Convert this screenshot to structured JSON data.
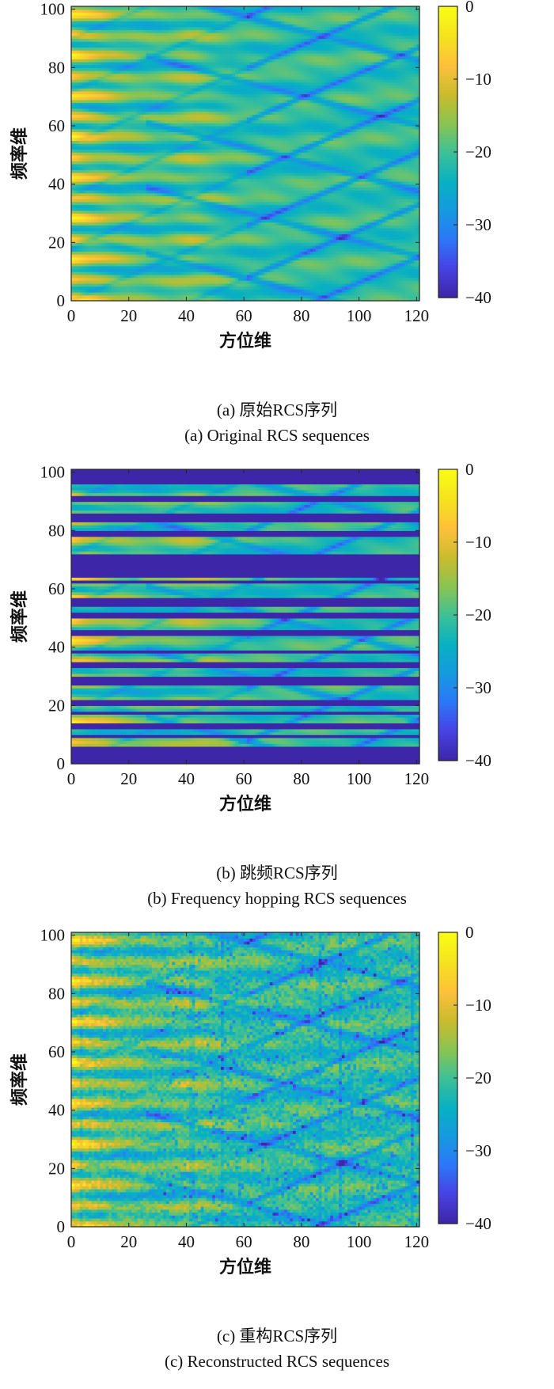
{
  "colors": {
    "colormap": "parula",
    "stops": [
      "#3e26a8",
      "#4743e6",
      "#2d78f8",
      "#149bde",
      "#08b1c1",
      "#3ec096",
      "#8ac452",
      "#c9bc2d",
      "#fdc03a",
      "#f5e21f",
      "#f9fb15"
    ]
  },
  "chart_data": [
    {
      "type": "heatmap",
      "panel": "a",
      "xlabel": "方位维",
      "ylabel": "频率维",
      "xlim": [
        0,
        121
      ],
      "ylim": [
        0,
        101
      ],
      "xticks": [
        0,
        20,
        40,
        60,
        80,
        100,
        120
      ],
      "yticks": [
        0,
        20,
        40,
        60,
        80,
        100
      ],
      "colorbar": {
        "min": -40,
        "max": 0,
        "ticks": [
          0,
          -10,
          -20,
          -30,
          -40
        ]
      },
      "caption_cn": "(a) 原始RCS序列",
      "caption_en": "(a) Original RCS sequences",
      "notes": "Original RCS in dB: strong (yellow/orange) banded returns at low azimuth (0-15) decaying toward -20 dB with diagonal interference nulls at higher azimuth"
    },
    {
      "type": "heatmap",
      "panel": "b",
      "xlabel": "方位维",
      "ylabel": "频率维",
      "xlim": [
        0,
        121
      ],
      "ylim": [
        0,
        101
      ],
      "xticks": [
        0,
        20,
        40,
        60,
        80,
        100,
        120
      ],
      "yticks": [
        0,
        20,
        40,
        60,
        80,
        100
      ],
      "colorbar": {
        "min": -40,
        "max": 0,
        "ticks": [
          0,
          -10,
          -20,
          -30,
          -40
        ]
      },
      "caption_cn": "(b) 跳频RCS序列",
      "caption_en": "(b) Frequency hopping RCS sequences",
      "notes": "Frequency hopping: same field as (a) with many frequency rows set to -40 dB (dark blue horizontal bands)",
      "empty_frequency_rows": [
        0,
        1,
        2,
        3,
        4,
        5,
        9,
        12,
        13,
        17,
        20,
        21,
        27,
        28,
        29,
        33,
        34,
        38,
        44,
        45,
        50,
        51,
        54,
        55,
        56,
        62,
        64,
        65,
        66,
        67,
        68,
        69,
        70,
        71,
        78,
        79,
        83,
        84,
        85,
        90,
        91,
        96,
        97,
        98,
        99,
        100
      ]
    },
    {
      "type": "heatmap",
      "panel": "c",
      "xlabel": "方位维",
      "ylabel": "频率维",
      "xlim": [
        0,
        121
      ],
      "ylim": [
        0,
        101
      ],
      "xticks": [
        0,
        20,
        40,
        60,
        80,
        100,
        120
      ],
      "yticks": [
        0,
        20,
        40,
        60,
        80,
        100
      ],
      "colorbar": {
        "min": -40,
        "max": 0,
        "ticks": [
          0,
          -10,
          -20,
          -30,
          -40
        ]
      },
      "caption_cn": "(c) 重构RCS序列",
      "caption_en": "(c) Reconstructed RCS sequences",
      "notes": "Reconstructed RCS: resembles (a) with added pixel-level noise and vertical seams"
    }
  ]
}
